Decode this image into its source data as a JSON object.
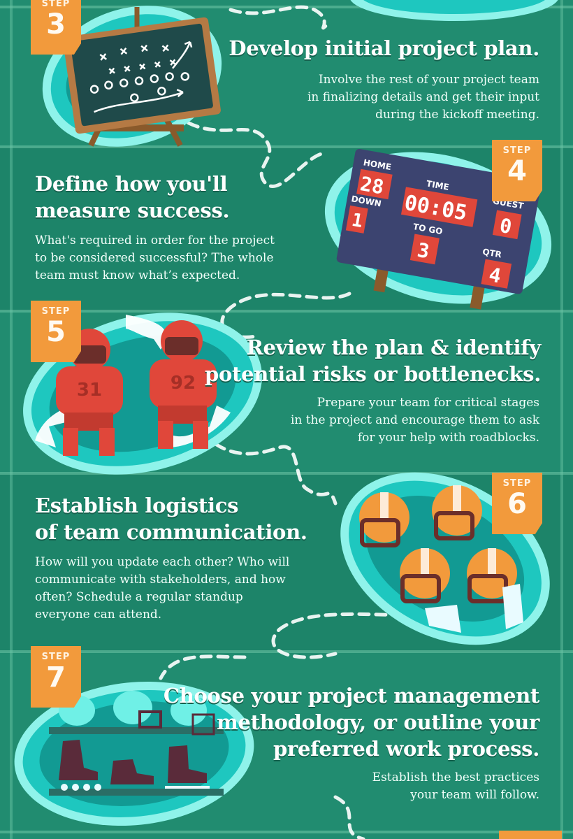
{
  "steps": [
    {
      "label": "STEP",
      "number": "3",
      "heading": [
        "Develop initial project plan."
      ],
      "body": [
        "Involve the rest of your project team",
        "in finalizing details and get their input",
        "during the kickoff meeting."
      ],
      "illustration": "chalkboard-playbook-icon"
    },
    {
      "label": "STEP",
      "number": "4",
      "heading": [
        "Define how you'll",
        "measure success."
      ],
      "body": [
        "What's required in order for the project",
        "to be considered successful? The whole",
        "team must know what’s expected."
      ],
      "illustration": "scoreboard-icon",
      "scoreboard": {
        "home_label": "HOME",
        "home_value": "28",
        "time_label": "TIME",
        "time_value": "00:05",
        "guest_label": "GUEST",
        "guest_value": "0",
        "down_label": "DOWN",
        "down_value": "1",
        "togo_label": "TO GO",
        "togo_value": "3",
        "qtr_label": "QTR",
        "qtr_value": "4"
      }
    },
    {
      "label": "STEP",
      "number": "5",
      "heading": [
        "Review the plan & identify",
        "potential risks or bottlenecks."
      ],
      "body": [
        "Prepare your team for critical stages",
        "in the project and encourage them to ask",
        "for your help with roadblocks."
      ],
      "illustration": "football-players-icon",
      "jerseys": [
        "31",
        "92"
      ]
    },
    {
      "label": "STEP",
      "number": "6",
      "heading": [
        "Establish logistics",
        "of team communication."
      ],
      "body": [
        "How will you update each other? Who will",
        "communicate with stakeholders, and how",
        "often? Schedule a regular standup",
        "everyone can attend."
      ],
      "illustration": "helmets-huddle-icon"
    },
    {
      "label": "STEP",
      "number": "7",
      "heading": [
        "Choose your project management",
        "methodology, or outline your",
        "preferred work process."
      ],
      "body": [
        "Establish the best practices",
        "your team will follow."
      ],
      "illustration": "sports-gear-icon"
    }
  ],
  "colors": {
    "field": "#1f8a6e",
    "field_stripe": "#248f73",
    "badge": "#f29a3c",
    "ball_outer": "#8ff3ea",
    "ball_mid": "#1ec7bf",
    "ball_inner": "#129a93",
    "jersey_red": "#e0473a",
    "scoreboard": "#3c4470",
    "score_red": "#e0473a",
    "path": "#ffffff"
  }
}
